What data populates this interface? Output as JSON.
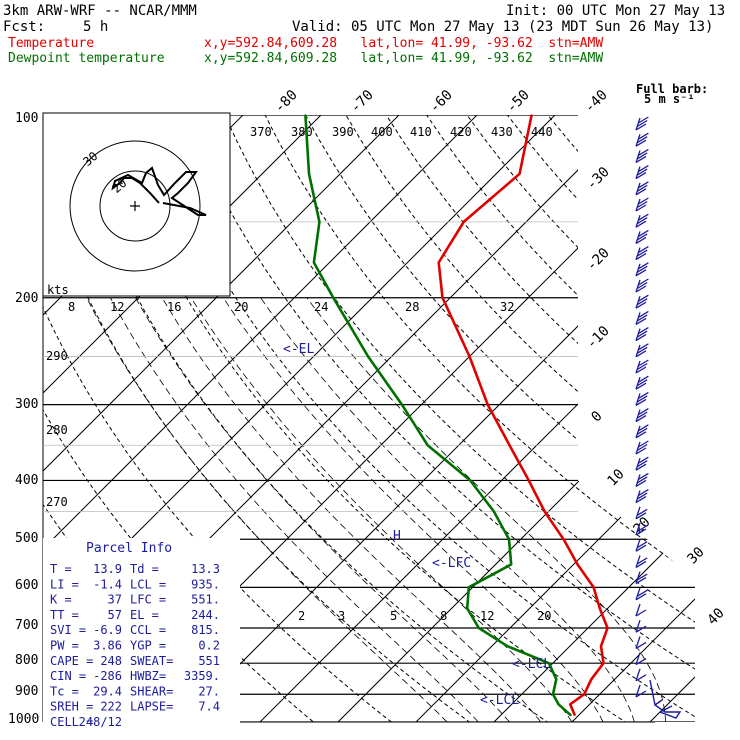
{
  "header": {
    "model": "3km ARW-WRF -- NCAR/MMM",
    "init": "Init: 00 UTC Mon 27 May 13",
    "fcst_label": "Fcst:",
    "fcst_value": "5 h",
    "valid": "Valid: 05 UTC Mon 27 May 13 (23 MDT Sun 26 May 13)",
    "temp_label": "Temperature",
    "temp_loc": "x,y=592.84,609.28   lat,lon= 41.99, -93.62  stn=AMW",
    "dew_label": "Dewpoint temperature",
    "dew_loc": "x,y=592.84,609.28   lat,lon= 41.99, -93.62  stn=AMW"
  },
  "barb_legend": {
    "title": "Full barb:",
    "value": "5 m s⁻¹"
  },
  "hodo_unit": "kts",
  "parcel_info": {
    "title": "Parcel Info",
    "rows": [
      [
        "T  =",
        "13.9",
        "Td =",
        "13.3"
      ],
      [
        "LI =",
        "-1.4",
        "LCL =",
        "935."
      ],
      [
        "K  =",
        "37",
        "LFC =",
        "551."
      ],
      [
        "TT =",
        "57",
        "EL =",
        "244."
      ],
      [
        "SVI =",
        "-6.9",
        "CCL =",
        "815."
      ],
      [
        "PW =",
        "3.86",
        "YGP =",
        "0.2"
      ],
      [
        "CAPE =",
        "248",
        "SWEAT=",
        "551"
      ],
      [
        "CIN =",
        "-286",
        "HWBZ=",
        "3359."
      ],
      [
        "Tc =",
        "29.4",
        "SHEAR=",
        "27."
      ],
      [
        "SREH =",
        "222",
        "LAPSE=",
        "7.4"
      ],
      [
        "CELL =",
        "248/12",
        "",
        ""
      ]
    ]
  },
  "annotations": {
    "el": "<-EL",
    "lfc": "<-LFC",
    "lcl_upper": "<-LCL",
    "lcl_lower": "<-LCL",
    "h": "H"
  },
  "chart_data": {
    "type": "line",
    "title": "Skew-T log-p",
    "xlabel": "Temperature (C)",
    "ylabel": "Pressure (hPa)",
    "pressure_levels": [
      1000,
      900,
      800,
      700,
      600,
      500,
      400,
      300,
      200,
      100
    ],
    "isotherm_labels": [
      "-80",
      "-70",
      "-60",
      "-50",
      "-40",
      "-30",
      "-20",
      "-10",
      "0",
      "10",
      "20",
      "30",
      "40"
    ],
    "theta_labels": [
      "370",
      "380",
      "390",
      "400",
      "410",
      "420",
      "430",
      "440"
    ],
    "theta_mid_labels": [
      "8",
      "12",
      "16",
      "20",
      "24",
      "28",
      "32"
    ],
    "theta_left_labels": [
      "290",
      "280",
      "270"
    ],
    "mixing_ratio_labels": [
      "2",
      "3",
      "5",
      "8",
      "12",
      "20"
    ],
    "hodograph_labels": [
      "30",
      "20"
    ],
    "series": [
      {
        "name": "Temperature",
        "color": "#e00000",
        "points": [
          [
            975,
            19.5
          ],
          [
            935,
            17.5
          ],
          [
            900,
            18.0
          ],
          [
            850,
            17.0
          ],
          [
            800,
            16.5
          ],
          [
            750,
            14.0
          ],
          [
            700,
            12.5
          ],
          [
            650,
            9.0
          ],
          [
            600,
            5.5
          ],
          [
            550,
            0.5
          ],
          [
            500,
            -4.5
          ],
          [
            450,
            -10.5
          ],
          [
            400,
            -16.5
          ],
          [
            350,
            -23.5
          ],
          [
            300,
            -31.5
          ],
          [
            250,
            -40.0
          ],
          [
            200,
            -51.0
          ],
          [
            175,
            -56.0
          ],
          [
            150,
            -58.0
          ],
          [
            125,
            -57.0
          ],
          [
            100,
            -63.0
          ]
        ]
      },
      {
        "name": "Dewpoint temperature",
        "color": "#007000",
        "points": [
          [
            975,
            19.0
          ],
          [
            935,
            16.0
          ],
          [
            900,
            14.0
          ],
          [
            850,
            12.5
          ],
          [
            800,
            9.5
          ],
          [
            750,
            2.0
          ],
          [
            700,
            -4.0
          ],
          [
            650,
            -8.0
          ],
          [
            600,
            -10.5
          ],
          [
            550,
            -8.0
          ],
          [
            500,
            -11.5
          ],
          [
            450,
            -17.0
          ],
          [
            400,
            -24.0
          ],
          [
            350,
            -34.0
          ],
          [
            300,
            -42.5
          ],
          [
            250,
            -53.0
          ],
          [
            200,
            -65.0
          ],
          [
            175,
            -72.0
          ],
          [
            150,
            -76.5
          ],
          [
            125,
            -84.0
          ],
          [
            100,
            -92.0
          ]
        ]
      }
    ],
    "color_temperature": "#e00000",
    "color_dewpoint": "#007000",
    "color_barbs": "#1c1c9c"
  }
}
